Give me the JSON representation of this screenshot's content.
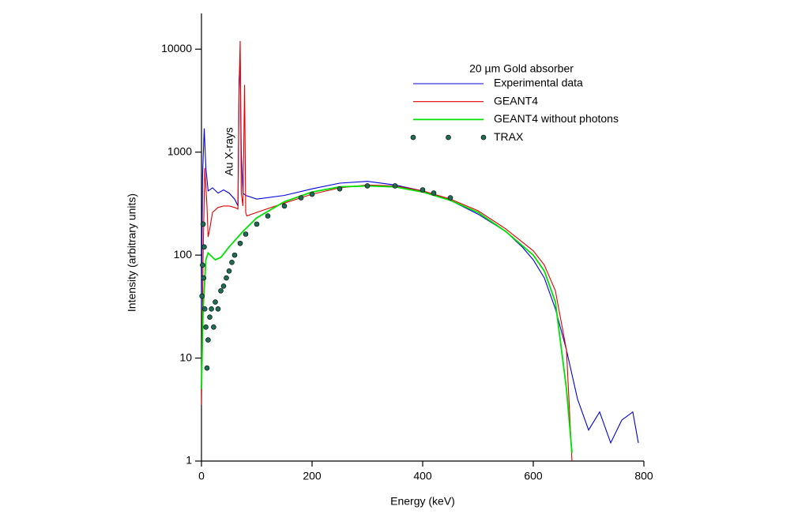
{
  "chart_data": {
    "type": "line",
    "x_label": "Energy (keV)",
    "y_label": "Intensity (arbitrary units)",
    "legend_title": "20 µm Gold absorber",
    "annotation": "Au X-rays",
    "log_y": true,
    "legend": "upper right",
    "xlim": [
      0,
      800
    ],
    "xticks": [
      0,
      200,
      400,
      600,
      800
    ],
    "ylim": [
      1,
      20000
    ],
    "yticks": [
      1,
      10,
      100,
      1000,
      10000
    ],
    "series": [
      {
        "name": "Experimental data",
        "color": "#0000e0",
        "mode": "lines",
        "x": [
          0,
          2,
          5,
          8,
          12,
          20,
          30,
          40,
          50,
          60,
          66,
          68,
          70,
          72,
          75,
          80,
          100,
          150,
          200,
          250,
          300,
          350,
          400,
          450,
          500,
          550,
          580,
          600,
          620,
          640,
          660,
          680,
          700,
          720,
          740,
          760,
          780,
          790
        ],
        "values": [
          30,
          600,
          1700,
          700,
          420,
          450,
          400,
          430,
          400,
          350,
          300,
          5000,
          8000,
          1000,
          400,
          380,
          350,
          380,
          440,
          500,
          520,
          480,
          420,
          340,
          250,
          170,
          120,
          90,
          60,
          30,
          12,
          4,
          2,
          3,
          1.5,
          2.5,
          3,
          1.5
        ]
      },
      {
        "name": "GEANT4",
        "color": "#e00000",
        "mode": "lines",
        "x": [
          0,
          3,
          6,
          10,
          12,
          15,
          20,
          30,
          40,
          50,
          60,
          66,
          68,
          70,
          72,
          75,
          78,
          80,
          82,
          100,
          150,
          200,
          250,
          300,
          350,
          400,
          450,
          500,
          550,
          600,
          620,
          640,
          660,
          670
        ],
        "values": [
          3.5,
          100,
          700,
          300,
          150,
          180,
          260,
          290,
          300,
          300,
          290,
          280,
          4000,
          12000,
          400,
          300,
          4500,
          260,
          240,
          260,
          320,
          390,
          450,
          480,
          470,
          420,
          350,
          270,
          180,
          110,
          80,
          45,
          12,
          1
        ]
      },
      {
        "name": "GEANT4 without photons",
        "color": "#00e000",
        "mode": "lines",
        "x": [
          0,
          3,
          8,
          12,
          16,
          25,
          35,
          50,
          75,
          100,
          150,
          200,
          250,
          300,
          350,
          400,
          450,
          500,
          550,
          600,
          620,
          640,
          660,
          670
        ],
        "values": [
          5,
          30,
          90,
          105,
          100,
          90,
          95,
          120,
          170,
          230,
          330,
          410,
          460,
          470,
          460,
          410,
          340,
          260,
          170,
          100,
          70,
          35,
          5,
          1.2
        ]
      },
      {
        "name": "TRAX",
        "color": "#1f6b55",
        "mode": "markers",
        "x": [
          1,
          2,
          3,
          4,
          5,
          6,
          8,
          10,
          12,
          15,
          18,
          22,
          25,
          30,
          35,
          40,
          45,
          50,
          55,
          60,
          70,
          80,
          100,
          120,
          150,
          180,
          200,
          250,
          300,
          350,
          400,
          420,
          450
        ],
        "values": [
          40,
          80,
          200,
          60,
          120,
          30,
          20,
          8,
          15,
          25,
          30,
          20,
          35,
          30,
          45,
          50,
          60,
          70,
          85,
          100,
          130,
          160,
          200,
          240,
          300,
          360,
          390,
          440,
          470,
          470,
          430,
          400,
          360
        ]
      }
    ]
  }
}
